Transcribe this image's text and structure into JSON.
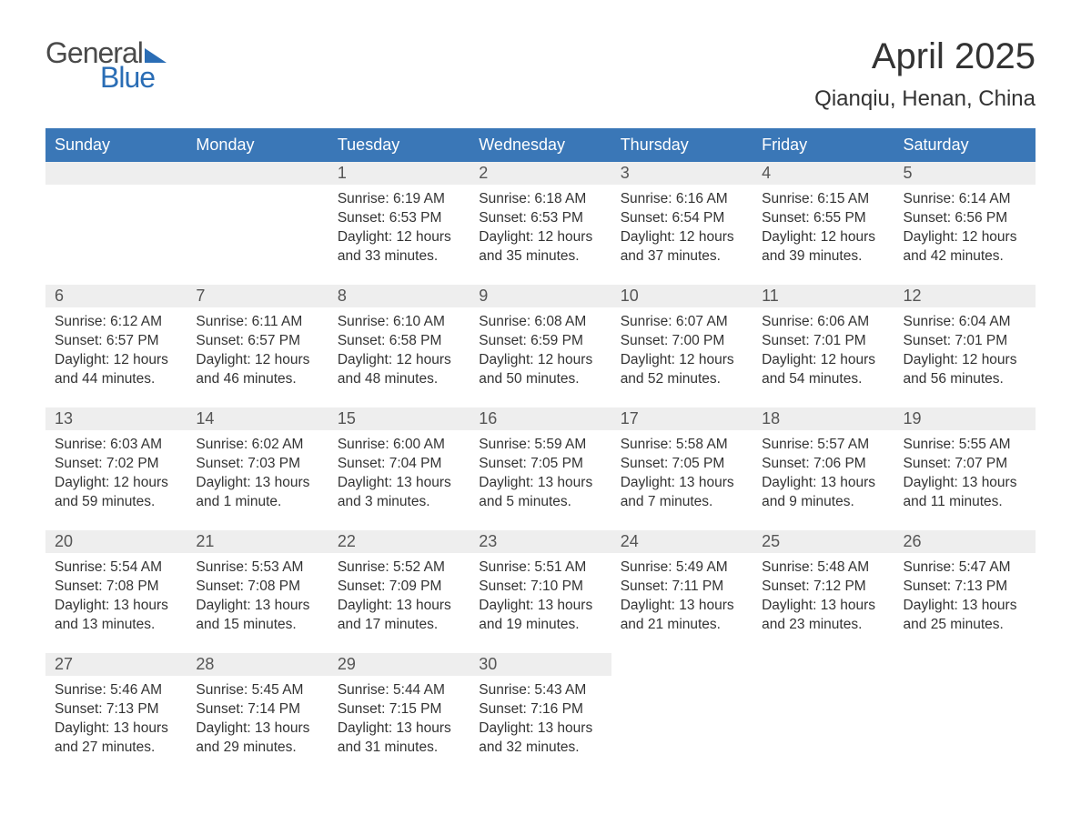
{
  "logo": {
    "word1": "General",
    "word2": "Blue"
  },
  "title": "April 2025",
  "location": "Qianqiu, Henan, China",
  "colors": {
    "header_bg": "#3a77b7",
    "header_text": "#ffffff",
    "daynum_bg": "#eeeeee",
    "row_border": "#3a77b7",
    "body_text": "#333333",
    "logo_gray": "#4a4a4a",
    "logo_blue": "#2a6db5",
    "page_bg": "#ffffff"
  },
  "day_headers": [
    "Sunday",
    "Monday",
    "Tuesday",
    "Wednesday",
    "Thursday",
    "Friday",
    "Saturday"
  ],
  "weeks": [
    [
      null,
      null,
      {
        "n": "1",
        "sr": "Sunrise: 6:19 AM",
        "ss": "Sunset: 6:53 PM",
        "d1": "Daylight: 12 hours",
        "d2": "and 33 minutes."
      },
      {
        "n": "2",
        "sr": "Sunrise: 6:18 AM",
        "ss": "Sunset: 6:53 PM",
        "d1": "Daylight: 12 hours",
        "d2": "and 35 minutes."
      },
      {
        "n": "3",
        "sr": "Sunrise: 6:16 AM",
        "ss": "Sunset: 6:54 PM",
        "d1": "Daylight: 12 hours",
        "d2": "and 37 minutes."
      },
      {
        "n": "4",
        "sr": "Sunrise: 6:15 AM",
        "ss": "Sunset: 6:55 PM",
        "d1": "Daylight: 12 hours",
        "d2": "and 39 minutes."
      },
      {
        "n": "5",
        "sr": "Sunrise: 6:14 AM",
        "ss": "Sunset: 6:56 PM",
        "d1": "Daylight: 12 hours",
        "d2": "and 42 minutes."
      }
    ],
    [
      {
        "n": "6",
        "sr": "Sunrise: 6:12 AM",
        "ss": "Sunset: 6:57 PM",
        "d1": "Daylight: 12 hours",
        "d2": "and 44 minutes."
      },
      {
        "n": "7",
        "sr": "Sunrise: 6:11 AM",
        "ss": "Sunset: 6:57 PM",
        "d1": "Daylight: 12 hours",
        "d2": "and 46 minutes."
      },
      {
        "n": "8",
        "sr": "Sunrise: 6:10 AM",
        "ss": "Sunset: 6:58 PM",
        "d1": "Daylight: 12 hours",
        "d2": "and 48 minutes."
      },
      {
        "n": "9",
        "sr": "Sunrise: 6:08 AM",
        "ss": "Sunset: 6:59 PM",
        "d1": "Daylight: 12 hours",
        "d2": "and 50 minutes."
      },
      {
        "n": "10",
        "sr": "Sunrise: 6:07 AM",
        "ss": "Sunset: 7:00 PM",
        "d1": "Daylight: 12 hours",
        "d2": "and 52 minutes."
      },
      {
        "n": "11",
        "sr": "Sunrise: 6:06 AM",
        "ss": "Sunset: 7:01 PM",
        "d1": "Daylight: 12 hours",
        "d2": "and 54 minutes."
      },
      {
        "n": "12",
        "sr": "Sunrise: 6:04 AM",
        "ss": "Sunset: 7:01 PM",
        "d1": "Daylight: 12 hours",
        "d2": "and 56 minutes."
      }
    ],
    [
      {
        "n": "13",
        "sr": "Sunrise: 6:03 AM",
        "ss": "Sunset: 7:02 PM",
        "d1": "Daylight: 12 hours",
        "d2": "and 59 minutes."
      },
      {
        "n": "14",
        "sr": "Sunrise: 6:02 AM",
        "ss": "Sunset: 7:03 PM",
        "d1": "Daylight: 13 hours",
        "d2": "and 1 minute."
      },
      {
        "n": "15",
        "sr": "Sunrise: 6:00 AM",
        "ss": "Sunset: 7:04 PM",
        "d1": "Daylight: 13 hours",
        "d2": "and 3 minutes."
      },
      {
        "n": "16",
        "sr": "Sunrise: 5:59 AM",
        "ss": "Sunset: 7:05 PM",
        "d1": "Daylight: 13 hours",
        "d2": "and 5 minutes."
      },
      {
        "n": "17",
        "sr": "Sunrise: 5:58 AM",
        "ss": "Sunset: 7:05 PM",
        "d1": "Daylight: 13 hours",
        "d2": "and 7 minutes."
      },
      {
        "n": "18",
        "sr": "Sunrise: 5:57 AM",
        "ss": "Sunset: 7:06 PM",
        "d1": "Daylight: 13 hours",
        "d2": "and 9 minutes."
      },
      {
        "n": "19",
        "sr": "Sunrise: 5:55 AM",
        "ss": "Sunset: 7:07 PM",
        "d1": "Daylight: 13 hours",
        "d2": "and 11 minutes."
      }
    ],
    [
      {
        "n": "20",
        "sr": "Sunrise: 5:54 AM",
        "ss": "Sunset: 7:08 PM",
        "d1": "Daylight: 13 hours",
        "d2": "and 13 minutes."
      },
      {
        "n": "21",
        "sr": "Sunrise: 5:53 AM",
        "ss": "Sunset: 7:08 PM",
        "d1": "Daylight: 13 hours",
        "d2": "and 15 minutes."
      },
      {
        "n": "22",
        "sr": "Sunrise: 5:52 AM",
        "ss": "Sunset: 7:09 PM",
        "d1": "Daylight: 13 hours",
        "d2": "and 17 minutes."
      },
      {
        "n": "23",
        "sr": "Sunrise: 5:51 AM",
        "ss": "Sunset: 7:10 PM",
        "d1": "Daylight: 13 hours",
        "d2": "and 19 minutes."
      },
      {
        "n": "24",
        "sr": "Sunrise: 5:49 AM",
        "ss": "Sunset: 7:11 PM",
        "d1": "Daylight: 13 hours",
        "d2": "and 21 minutes."
      },
      {
        "n": "25",
        "sr": "Sunrise: 5:48 AM",
        "ss": "Sunset: 7:12 PM",
        "d1": "Daylight: 13 hours",
        "d2": "and 23 minutes."
      },
      {
        "n": "26",
        "sr": "Sunrise: 5:47 AM",
        "ss": "Sunset: 7:13 PM",
        "d1": "Daylight: 13 hours",
        "d2": "and 25 minutes."
      }
    ],
    [
      {
        "n": "27",
        "sr": "Sunrise: 5:46 AM",
        "ss": "Sunset: 7:13 PM",
        "d1": "Daylight: 13 hours",
        "d2": "and 27 minutes."
      },
      {
        "n": "28",
        "sr": "Sunrise: 5:45 AM",
        "ss": "Sunset: 7:14 PM",
        "d1": "Daylight: 13 hours",
        "d2": "and 29 minutes."
      },
      {
        "n": "29",
        "sr": "Sunrise: 5:44 AM",
        "ss": "Sunset: 7:15 PM",
        "d1": "Daylight: 13 hours",
        "d2": "and 31 minutes."
      },
      {
        "n": "30",
        "sr": "Sunrise: 5:43 AM",
        "ss": "Sunset: 7:16 PM",
        "d1": "Daylight: 13 hours",
        "d2": "and 32 minutes."
      },
      null,
      null,
      null
    ]
  ]
}
